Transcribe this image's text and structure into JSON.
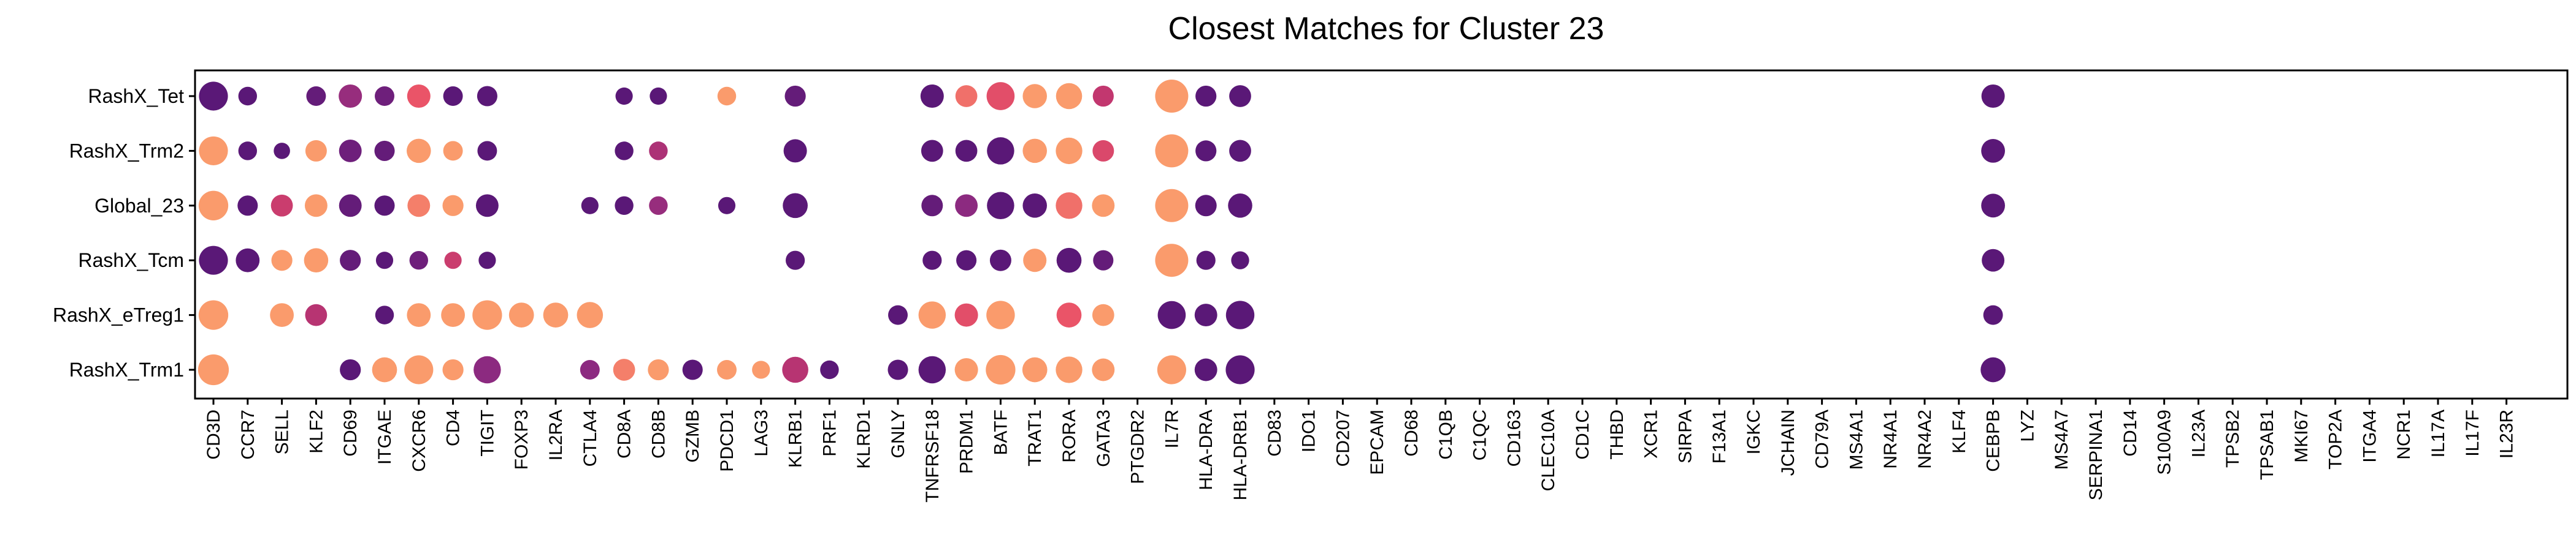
{
  "chart_data": {
    "type": "scatter",
    "title": "Closest Matches for Cluster 23",
    "xlabel": "",
    "ylabel": "",
    "grid": false,
    "legend": "none",
    "genes": [
      "CD3D",
      "CCR7",
      "SELL",
      "KLF2",
      "CD69",
      "ITGAE",
      "CXCR6",
      "CD4",
      "TIGIT",
      "FOXP3",
      "IL2RA",
      "CTLA4",
      "CD8A",
      "CD8B",
      "GZMB",
      "PDCD1",
      "LAG3",
      "KLRB1",
      "PRF1",
      "KLRD1",
      "GNLY",
      "TNFRSF18",
      "PRDM1",
      "BATF",
      "TRAT1",
      "RORA",
      "GATA3",
      "PTGDR2",
      "IL7R",
      "HLA-DRA",
      "HLA-DRB1",
      "CD83",
      "IDO1",
      "CD207",
      "EPCAM",
      "CD68",
      "C1QB",
      "C1QC",
      "CD163",
      "CLEC10A",
      "CD1C",
      "THBD",
      "XCR1",
      "SIRPA",
      "F13A1",
      "IGKC",
      "JCHAIN",
      "CD79A",
      "MS4A1",
      "NR4A1",
      "NR4A2",
      "KLF4",
      "CEBPB",
      "LYZ",
      "MS4A7",
      "SERPINA1",
      "CD14",
      "S100A9",
      "IL23A",
      "TPSB2",
      "TPSAB1",
      "MKI67",
      "TOP2A",
      "ITGA4",
      "NCR1",
      "IL17A",
      "IL17F",
      "IL23R"
    ],
    "clusters": [
      "RashX_Tet",
      "RashX_Trm2",
      "Global_23",
      "RashX_Tcm",
      "RashX_eTreg1",
      "RashX_Trm1"
    ],
    "size_range": [
      0,
      1
    ],
    "color_range": [
      0,
      1
    ],
    "palette": [
      "#5a1877",
      "#8c2a80",
      "#c2376f",
      "#ea5468",
      "#fa9b6c"
    ],
    "points": [
      {
        "cluster": "RashX_Tet",
        "gene": "CD3D",
        "size": 0.82,
        "color": 0.0
      },
      {
        "cluster": "RashX_Tet",
        "gene": "CCR7",
        "size": 0.38,
        "color": 0.0
      },
      {
        "cluster": "RashX_Tet",
        "gene": "KLF2",
        "size": 0.42,
        "color": 0.05
      },
      {
        "cluster": "RashX_Tet",
        "gene": "CD69",
        "size": 0.58,
        "color": 0.3
      },
      {
        "cluster": "RashX_Tet",
        "gene": "ITGAE",
        "size": 0.42,
        "color": 0.1
      },
      {
        "cluster": "RashX_Tet",
        "gene": "CXCR6",
        "size": 0.58,
        "color": 0.75
      },
      {
        "cluster": "RashX_Tet",
        "gene": "CD4",
        "size": 0.42,
        "color": 0.0
      },
      {
        "cluster": "RashX_Tet",
        "gene": "TIGIT",
        "size": 0.45,
        "color": 0.0
      },
      {
        "cluster": "RashX_Tet",
        "gene": "CD8A",
        "size": 0.32,
        "color": 0.0
      },
      {
        "cluster": "RashX_Tet",
        "gene": "CD8B",
        "size": 0.32,
        "color": 0.0
      },
      {
        "cluster": "RashX_Tet",
        "gene": "PDCD1",
        "size": 0.38,
        "color": 1.0
      },
      {
        "cluster": "RashX_Tet",
        "gene": "KLRB1",
        "size": 0.48,
        "color": 0.05
      },
      {
        "cluster": "RashX_Tet",
        "gene": "TNFRSF18",
        "size": 0.58,
        "color": 0.0
      },
      {
        "cluster": "RashX_Tet",
        "gene": "PRDM1",
        "size": 0.52,
        "color": 0.85
      },
      {
        "cluster": "RashX_Tet",
        "gene": "BATF",
        "size": 0.78,
        "color": 0.7
      },
      {
        "cluster": "RashX_Tet",
        "gene": "TRAT1",
        "size": 0.62,
        "color": 1.0
      },
      {
        "cluster": "RashX_Tet",
        "gene": "RORA",
        "size": 0.7,
        "color": 1.0
      },
      {
        "cluster": "RashX_Tet",
        "gene": "GATA3",
        "size": 0.48,
        "color": 0.5
      },
      {
        "cluster": "RashX_Tet",
        "gene": "IL7R",
        "size": 1.0,
        "color": 1.0
      },
      {
        "cluster": "RashX_Tet",
        "gene": "HLA-DRA",
        "size": 0.48,
        "color": 0.0
      },
      {
        "cluster": "RashX_Tet",
        "gene": "HLA-DRB1",
        "size": 0.52,
        "color": 0.0
      },
      {
        "cluster": "RashX_Tet",
        "gene": "CEBPB",
        "size": 0.58,
        "color": 0.0
      },
      {
        "cluster": "RashX_Trm2",
        "gene": "CD3D",
        "size": 0.82,
        "color": 1.0
      },
      {
        "cluster": "RashX_Trm2",
        "gene": "CCR7",
        "size": 0.38,
        "color": 0.0
      },
      {
        "cluster": "RashX_Trm2",
        "gene": "SELL",
        "size": 0.28,
        "color": 0.0
      },
      {
        "cluster": "RashX_Trm2",
        "gene": "KLF2",
        "size": 0.5,
        "color": 1.0
      },
      {
        "cluster": "RashX_Trm2",
        "gene": "CD69",
        "size": 0.55,
        "color": 0.1
      },
      {
        "cluster": "RashX_Trm2",
        "gene": "ITGAE",
        "size": 0.45,
        "color": 0.05
      },
      {
        "cluster": "RashX_Trm2",
        "gene": "CXCR6",
        "size": 0.62,
        "color": 1.0
      },
      {
        "cluster": "RashX_Trm2",
        "gene": "CD4",
        "size": 0.42,
        "color": 1.0
      },
      {
        "cluster": "RashX_Trm2",
        "gene": "TIGIT",
        "size": 0.42,
        "color": 0.0
      },
      {
        "cluster": "RashX_Trm2",
        "gene": "CD8A",
        "size": 0.38,
        "color": 0.0
      },
      {
        "cluster": "RashX_Trm2",
        "gene": "CD8B",
        "size": 0.38,
        "color": 0.4
      },
      {
        "cluster": "RashX_Trm2",
        "gene": "KLRB1",
        "size": 0.58,
        "color": 0.0
      },
      {
        "cluster": "RashX_Trm2",
        "gene": "TNFRSF18",
        "size": 0.52,
        "color": 0.0
      },
      {
        "cluster": "RashX_Trm2",
        "gene": "PRDM1",
        "size": 0.52,
        "color": 0.0
      },
      {
        "cluster": "RashX_Trm2",
        "gene": "BATF",
        "size": 0.75,
        "color": 0.0
      },
      {
        "cluster": "RashX_Trm2",
        "gene": "TRAT1",
        "size": 0.62,
        "color": 1.0
      },
      {
        "cluster": "RashX_Trm2",
        "gene": "RORA",
        "size": 0.72,
        "color": 1.0
      },
      {
        "cluster": "RashX_Trm2",
        "gene": "GATA3",
        "size": 0.5,
        "color": 0.65
      },
      {
        "cluster": "RashX_Trm2",
        "gene": "IL7R",
        "size": 1.0,
        "color": 1.0
      },
      {
        "cluster": "RashX_Trm2",
        "gene": "HLA-DRA",
        "size": 0.48,
        "color": 0.0
      },
      {
        "cluster": "RashX_Trm2",
        "gene": "HLA-DRB1",
        "size": 0.52,
        "color": 0.0
      },
      {
        "cluster": "RashX_Trm2",
        "gene": "CEBPB",
        "size": 0.6,
        "color": 0.0
      },
      {
        "cluster": "Global_23",
        "gene": "CD3D",
        "size": 0.85,
        "color": 1.0
      },
      {
        "cluster": "Global_23",
        "gene": "CCR7",
        "size": 0.45,
        "color": 0.0
      },
      {
        "cluster": "Global_23",
        "gene": "SELL",
        "size": 0.52,
        "color": 0.55
      },
      {
        "cluster": "Global_23",
        "gene": "KLF2",
        "size": 0.55,
        "color": 1.0
      },
      {
        "cluster": "Global_23",
        "gene": "CD69",
        "size": 0.55,
        "color": 0.05
      },
      {
        "cluster": "Global_23",
        "gene": "ITGAE",
        "size": 0.45,
        "color": 0.0
      },
      {
        "cluster": "Global_23",
        "gene": "CXCR6",
        "size": 0.55,
        "color": 0.9
      },
      {
        "cluster": "Global_23",
        "gene": "CD4",
        "size": 0.48,
        "color": 1.0
      },
      {
        "cluster": "Global_23",
        "gene": "TIGIT",
        "size": 0.55,
        "color": 0.0
      },
      {
        "cluster": "Global_23",
        "gene": "CTLA4",
        "size": 0.32,
        "color": 0.0
      },
      {
        "cluster": "Global_23",
        "gene": "CD8A",
        "size": 0.38,
        "color": 0.0
      },
      {
        "cluster": "Global_23",
        "gene": "CD8B",
        "size": 0.38,
        "color": 0.3
      },
      {
        "cluster": "Global_23",
        "gene": "PDCD1",
        "size": 0.32,
        "color": 0.0
      },
      {
        "cluster": "Global_23",
        "gene": "KLRB1",
        "size": 0.65,
        "color": 0.0
      },
      {
        "cluster": "Global_23",
        "gene": "TNFRSF18",
        "size": 0.5,
        "color": 0.05
      },
      {
        "cluster": "Global_23",
        "gene": "PRDM1",
        "size": 0.55,
        "color": 0.25
      },
      {
        "cluster": "Global_23",
        "gene": "BATF",
        "size": 0.75,
        "color": 0.0
      },
      {
        "cluster": "Global_23",
        "gene": "TRAT1",
        "size": 0.62,
        "color": 0.0
      },
      {
        "cluster": "Global_23",
        "gene": "RORA",
        "size": 0.72,
        "color": 0.85
      },
      {
        "cluster": "Global_23",
        "gene": "GATA3",
        "size": 0.55,
        "color": 1.0
      },
      {
        "cluster": "Global_23",
        "gene": "IL7R",
        "size": 1.0,
        "color": 1.0
      },
      {
        "cluster": "Global_23",
        "gene": "HLA-DRA",
        "size": 0.5,
        "color": 0.0
      },
      {
        "cluster": "Global_23",
        "gene": "HLA-DRB1",
        "size": 0.62,
        "color": 0.0
      },
      {
        "cluster": "Global_23",
        "gene": "CEBPB",
        "size": 0.6,
        "color": 0.0
      },
      {
        "cluster": "RashX_Tcm",
        "gene": "CD3D",
        "size": 0.82,
        "color": 0.0
      },
      {
        "cluster": "RashX_Tcm",
        "gene": "CCR7",
        "size": 0.6,
        "color": 0.0
      },
      {
        "cluster": "RashX_Tcm",
        "gene": "SELL",
        "size": 0.48,
        "color": 1.0
      },
      {
        "cluster": "RashX_Tcm",
        "gene": "KLF2",
        "size": 0.62,
        "color": 1.0
      },
      {
        "cluster": "RashX_Tcm",
        "gene": "CD69",
        "size": 0.48,
        "color": 0.05
      },
      {
        "cluster": "RashX_Tcm",
        "gene": "ITGAE",
        "size": 0.32,
        "color": 0.0
      },
      {
        "cluster": "RashX_Tcm",
        "gene": "CXCR6",
        "size": 0.38,
        "color": 0.1
      },
      {
        "cluster": "RashX_Tcm",
        "gene": "CD4",
        "size": 0.32,
        "color": 0.55
      },
      {
        "cluster": "RashX_Tcm",
        "gene": "TIGIT",
        "size": 0.32,
        "color": 0.0
      },
      {
        "cluster": "RashX_Tcm",
        "gene": "KLRB1",
        "size": 0.4,
        "color": 0.0
      },
      {
        "cluster": "RashX_Tcm",
        "gene": "TNFRSF18",
        "size": 0.4,
        "color": 0.0
      },
      {
        "cluster": "RashX_Tcm",
        "gene": "PRDM1",
        "size": 0.45,
        "color": 0.0
      },
      {
        "cluster": "RashX_Tcm",
        "gene": "BATF",
        "size": 0.5,
        "color": 0.0
      },
      {
        "cluster": "RashX_Tcm",
        "gene": "TRAT1",
        "size": 0.58,
        "color": 1.0
      },
      {
        "cluster": "RashX_Tcm",
        "gene": "RORA",
        "size": 0.65,
        "color": 0.0
      },
      {
        "cluster": "RashX_Tcm",
        "gene": "GATA3",
        "size": 0.45,
        "color": 0.05
      },
      {
        "cluster": "RashX_Tcm",
        "gene": "IL7R",
        "size": 1.0,
        "color": 1.0
      },
      {
        "cluster": "RashX_Tcm",
        "gene": "HLA-DRA",
        "size": 0.4,
        "color": 0.0
      },
      {
        "cluster": "RashX_Tcm",
        "gene": "HLA-DRB1",
        "size": 0.35,
        "color": 0.0
      },
      {
        "cluster": "RashX_Tcm",
        "gene": "CEBPB",
        "size": 0.55,
        "color": 0.0
      },
      {
        "cluster": "RashX_eTreg1",
        "gene": "CD3D",
        "size": 0.85,
        "color": 1.0
      },
      {
        "cluster": "RashX_eTreg1",
        "gene": "SELL",
        "size": 0.6,
        "color": 1.0
      },
      {
        "cluster": "RashX_eTreg1",
        "gene": "KLF2",
        "size": 0.52,
        "color": 0.45
      },
      {
        "cluster": "RashX_eTreg1",
        "gene": "ITGAE",
        "size": 0.38,
        "color": 0.0
      },
      {
        "cluster": "RashX_eTreg1",
        "gene": "CXCR6",
        "size": 0.6,
        "color": 1.0
      },
      {
        "cluster": "RashX_eTreg1",
        "gene": "CD4",
        "size": 0.6,
        "color": 1.0
      },
      {
        "cluster": "RashX_eTreg1",
        "gene": "TIGIT",
        "size": 0.85,
        "color": 1.0
      },
      {
        "cluster": "RashX_eTreg1",
        "gene": "FOXP3",
        "size": 0.65,
        "color": 1.0
      },
      {
        "cluster": "RashX_eTreg1",
        "gene": "IL2RA",
        "size": 0.65,
        "color": 1.0
      },
      {
        "cluster": "RashX_eTreg1",
        "gene": "CTLA4",
        "size": 0.7,
        "color": 1.0
      },
      {
        "cluster": "RashX_eTreg1",
        "gene": "GNLY",
        "size": 0.42,
        "color": 0.0
      },
      {
        "cluster": "RashX_eTreg1",
        "gene": "TNFRSF18",
        "size": 0.75,
        "color": 1.0
      },
      {
        "cluster": "RashX_eTreg1",
        "gene": "PRDM1",
        "size": 0.58,
        "color": 0.7
      },
      {
        "cluster": "RashX_eTreg1",
        "gene": "BATF",
        "size": 0.8,
        "color": 1.0
      },
      {
        "cluster": "RashX_eTreg1",
        "gene": "RORA",
        "size": 0.65,
        "color": 0.75
      },
      {
        "cluster": "RashX_eTreg1",
        "gene": "GATA3",
        "size": 0.52,
        "color": 1.0
      },
      {
        "cluster": "RashX_eTreg1",
        "gene": "IL7R",
        "size": 0.78,
        "color": 0.0
      },
      {
        "cluster": "RashX_eTreg1",
        "gene": "HLA-DRA",
        "size": 0.55,
        "color": 0.0
      },
      {
        "cluster": "RashX_eTreg1",
        "gene": "HLA-DRB1",
        "size": 0.8,
        "color": 0.0
      },
      {
        "cluster": "RashX_eTreg1",
        "gene": "CEBPB",
        "size": 0.42,
        "color": 0.0
      },
      {
        "cluster": "RashX_Trm1",
        "gene": "CD3D",
        "size": 0.9,
        "color": 1.0
      },
      {
        "cluster": "RashX_Trm1",
        "gene": "CD69",
        "size": 0.48,
        "color": 0.0
      },
      {
        "cluster": "RashX_Trm1",
        "gene": "ITGAE",
        "size": 0.65,
        "color": 1.0
      },
      {
        "cluster": "RashX_Trm1",
        "gene": "CXCR6",
        "size": 0.82,
        "color": 1.0
      },
      {
        "cluster": "RashX_Trm1",
        "gene": "CD4",
        "size": 0.48,
        "color": 1.0
      },
      {
        "cluster": "RashX_Trm1",
        "gene": "TIGIT",
        "size": 0.75,
        "color": 0.25
      },
      {
        "cluster": "RashX_Trm1",
        "gene": "CTLA4",
        "size": 0.42,
        "color": 0.25
      },
      {
        "cluster": "RashX_Trm1",
        "gene": "CD8A",
        "size": 0.52,
        "color": 0.9
      },
      {
        "cluster": "RashX_Trm1",
        "gene": "CD8B",
        "size": 0.48,
        "color": 1.0
      },
      {
        "cluster": "RashX_Trm1",
        "gene": "GZMB",
        "size": 0.45,
        "color": 0.0
      },
      {
        "cluster": "RashX_Trm1",
        "gene": "PDCD1",
        "size": 0.42,
        "color": 1.0
      },
      {
        "cluster": "RashX_Trm1",
        "gene": "LAG3",
        "size": 0.35,
        "color": 1.0
      },
      {
        "cluster": "RashX_Trm1",
        "gene": "KLRB1",
        "size": 0.7,
        "color": 0.45
      },
      {
        "cluster": "RashX_Trm1",
        "gene": "PRF1",
        "size": 0.38,
        "color": 0.0
      },
      {
        "cluster": "RashX_Trm1",
        "gene": "GNLY",
        "size": 0.45,
        "color": 0.0
      },
      {
        "cluster": "RashX_Trm1",
        "gene": "TNFRSF18",
        "size": 0.75,
        "color": 0.0
      },
      {
        "cluster": "RashX_Trm1",
        "gene": "PRDM1",
        "size": 0.58,
        "color": 1.0
      },
      {
        "cluster": "RashX_Trm1",
        "gene": "BATF",
        "size": 0.85,
        "color": 1.0
      },
      {
        "cluster": "RashX_Trm1",
        "gene": "TRAT1",
        "size": 0.65,
        "color": 1.0
      },
      {
        "cluster": "RashX_Trm1",
        "gene": "RORA",
        "size": 0.72,
        "color": 1.0
      },
      {
        "cluster": "RashX_Trm1",
        "gene": "GATA3",
        "size": 0.55,
        "color": 1.0
      },
      {
        "cluster": "RashX_Trm1",
        "gene": "IL7R",
        "size": 0.82,
        "color": 1.0
      },
      {
        "cluster": "RashX_Trm1",
        "gene": "HLA-DRA",
        "size": 0.55,
        "color": 0.0
      },
      {
        "cluster": "RashX_Trm1",
        "gene": "HLA-DRB1",
        "size": 0.82,
        "color": 0.0
      },
      {
        "cluster": "RashX_Trm1",
        "gene": "CEBPB",
        "size": 0.65,
        "color": 0.0
      }
    ]
  }
}
